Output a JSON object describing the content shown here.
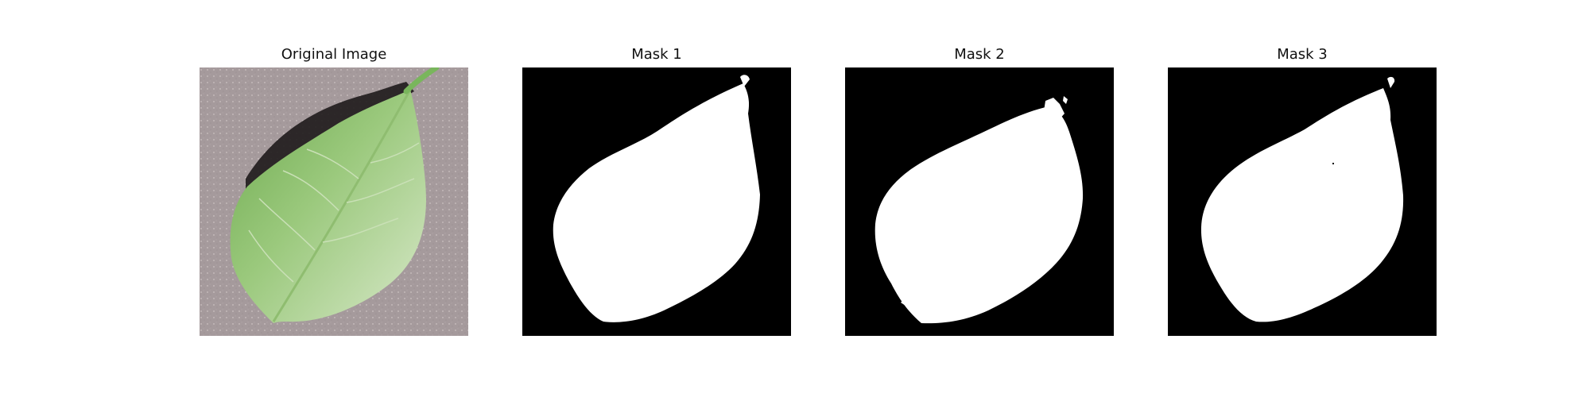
{
  "figure": {
    "panels": [
      {
        "title": "Original Image",
        "kind": "photo",
        "subject": "leaf-photo"
      },
      {
        "title": "Mask 1",
        "kind": "mask",
        "subject": "leaf-mask"
      },
      {
        "title": "Mask 2",
        "kind": "mask",
        "subject": "leaf-mask"
      },
      {
        "title": "Mask 3",
        "kind": "mask",
        "subject": "leaf-mask"
      }
    ],
    "colors": {
      "background": "#ffffff",
      "mask_foreground": "#ffffff",
      "mask_background": "#000000",
      "photo_background": "#a59a9c",
      "leaf_green": "#8dbf72",
      "leaf_light": "#d9e8c7",
      "stem": "#75b85b"
    }
  }
}
